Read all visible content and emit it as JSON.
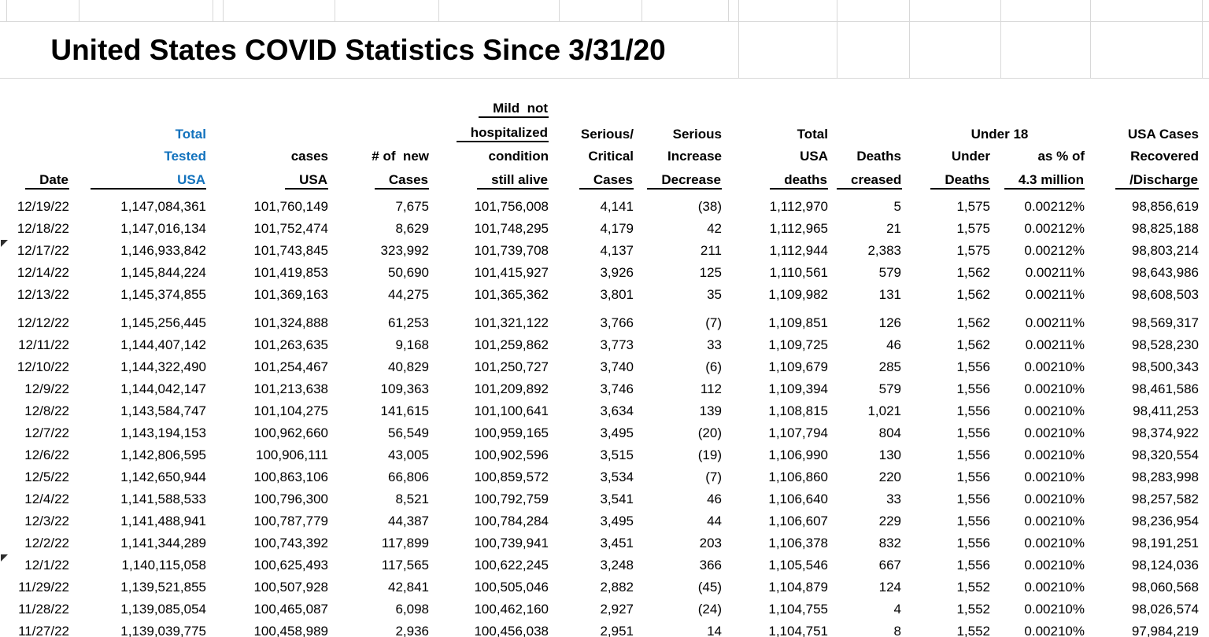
{
  "sheet_title": "United States COVID Statistics Since 3/31/20",
  "colors": {
    "header_accent_blue": "#1272bd",
    "gridline": "#d8d8d8",
    "text": "#000000"
  },
  "column_headers": {
    "date": "Date",
    "total_tested_usa": {
      "l1": "Total",
      "l2": "Tested",
      "l3": "USA"
    },
    "cases_usa": {
      "l1": "cases",
      "l2": "USA"
    },
    "new_cases": {
      "l1": "# of  new",
      "l2": "Cases"
    },
    "mild": {
      "l1": "Mild  not",
      "l2": "hospitalized",
      "l3": "condition",
      "l4": "still alive"
    },
    "serious_critical": {
      "l1": "Serious/",
      "l2": "Critical",
      "l3": "Cases"
    },
    "serious_change": {
      "l1": "Serious",
      "l2": "Increase",
      "l3": "Decrease"
    },
    "total_deaths": {
      "l1": "Total",
      "l2": "USA",
      "l3": "deaths"
    },
    "deaths_change": {
      "l1": "Deaths",
      "l2": "creased"
    },
    "under_18": {
      "group": "Under 18",
      "deaths_l1": "Under",
      "deaths_l2": "Deaths",
      "pct_l1": "as % of",
      "pct_l2": "4.3 million"
    },
    "recovered": {
      "l1": "USA Cases",
      "l2": "Recovered",
      "l3": "/Discharge"
    }
  },
  "rows": [
    {
      "date": "12/19/22",
      "tested": "1,147,084,361",
      "cases": "101,760,149",
      "new_cases": "7,675",
      "mild": "101,756,008",
      "serious": "4,141",
      "serious_change": "(38)",
      "deaths": "1,112,970",
      "deaths_change": "5",
      "under18_deaths": "1,575",
      "under18_pct": "0.00212%",
      "recovered": "98,856,619"
    },
    {
      "date": "12/18/22",
      "tested": "1,147,016,134",
      "cases": "101,752,474",
      "new_cases": "8,629",
      "mild": "101,748,295",
      "serious": "4,179",
      "serious_change": "42",
      "deaths": "1,112,965",
      "deaths_change": "21",
      "under18_deaths": "1,575",
      "under18_pct": "0.00212%",
      "recovered": "98,825,188"
    },
    {
      "date": "12/17/22",
      "tested": "1,146,933,842",
      "cases": "101,743,845",
      "new_cases": "323,992",
      "mild": "101,739,708",
      "serious": "4,137",
      "serious_change": "211",
      "deaths": "1,112,944",
      "deaths_change": "2,383",
      "under18_deaths": "1,575",
      "under18_pct": "0.00212%",
      "recovered": "98,803,214",
      "flagged": true
    },
    {
      "date": "12/14/22",
      "tested": "1,145,844,224",
      "cases": "101,419,853",
      "new_cases": "50,690",
      "mild": "101,415,927",
      "serious": "3,926",
      "serious_change": "125",
      "deaths": "1,110,561",
      "deaths_change": "579",
      "under18_deaths": "1,562",
      "under18_pct": "0.00211%",
      "recovered": "98,643,986"
    },
    {
      "date": "12/13/22",
      "tested": "1,145,374,855",
      "cases": "101,369,163",
      "new_cases": "44,275",
      "mild": "101,365,362",
      "serious": "3,801",
      "serious_change": "35",
      "deaths": "1,109,982",
      "deaths_change": "131",
      "under18_deaths": "1,562",
      "under18_pct": "0.00211%",
      "recovered": "98,608,503",
      "spacer_after": true
    },
    {
      "date": "12/12/22",
      "tested": "1,145,256,445",
      "cases": "101,324,888",
      "new_cases": "61,253",
      "mild": "101,321,122",
      "serious": "3,766",
      "serious_change": "(7)",
      "deaths": "1,109,851",
      "deaths_change": "126",
      "under18_deaths": "1,562",
      "under18_pct": "0.00211%",
      "recovered": "98,569,317"
    },
    {
      "date": "12/11/22",
      "tested": "1,144,407,142",
      "cases": "101,263,635",
      "new_cases": "9,168",
      "mild": "101,259,862",
      "serious": "3,773",
      "serious_change": "33",
      "deaths": "1,109,725",
      "deaths_change": "46",
      "under18_deaths": "1,562",
      "under18_pct": "0.00211%",
      "recovered": "98,528,230"
    },
    {
      "date": "12/10/22",
      "tested": "1,144,322,490",
      "cases": "101,254,467",
      "new_cases": "40,829",
      "mild": "101,250,727",
      "serious": "3,740",
      "serious_change": "(6)",
      "deaths": "1,109,679",
      "deaths_change": "285",
      "under18_deaths": "1,556",
      "under18_pct": "0.00210%",
      "recovered": "98,500,343"
    },
    {
      "date": "12/9/22",
      "tested": "1,144,042,147",
      "cases": "101,213,638",
      "new_cases": "109,363",
      "mild": "101,209,892",
      "serious": "3,746",
      "serious_change": "112",
      "deaths": "1,109,394",
      "deaths_change": "579",
      "under18_deaths": "1,556",
      "under18_pct": "0.00210%",
      "recovered": "98,461,586"
    },
    {
      "date": "12/8/22",
      "tested": "1,143,584,747",
      "cases": "101,104,275",
      "new_cases": "141,615",
      "mild": "101,100,641",
      "serious": "3,634",
      "serious_change": "139",
      "deaths": "1,108,815",
      "deaths_change": "1,021",
      "under18_deaths": "1,556",
      "under18_pct": "0.00210%",
      "recovered": "98,411,253"
    },
    {
      "date": "12/7/22",
      "tested": "1,143,194,153",
      "cases": "100,962,660",
      "new_cases": "56,549",
      "mild": "100,959,165",
      "serious": "3,495",
      "serious_change": "(20)",
      "deaths": "1,107,794",
      "deaths_change": "804",
      "under18_deaths": "1,556",
      "under18_pct": "0.00210%",
      "recovered": "98,374,922"
    },
    {
      "date": "12/6/22",
      "tested": "1,142,806,595",
      "cases": "100,906,111",
      "new_cases": "43,005",
      "mild": "100,902,596",
      "serious": "3,515",
      "serious_change": "(19)",
      "deaths": "1,106,990",
      "deaths_change": "130",
      "under18_deaths": "1,556",
      "under18_pct": "0.00210%",
      "recovered": "98,320,554"
    },
    {
      "date": "12/5/22",
      "tested": "1,142,650,944",
      "cases": "100,863,106",
      "new_cases": "66,806",
      "mild": "100,859,572",
      "serious": "3,534",
      "serious_change": "(7)",
      "deaths": "1,106,860",
      "deaths_change": "220",
      "under18_deaths": "1,556",
      "under18_pct": "0.00210%",
      "recovered": "98,283,998"
    },
    {
      "date": "12/4/22",
      "tested": "1,141,588,533",
      "cases": "100,796,300",
      "new_cases": "8,521",
      "mild": "100,792,759",
      "serious": "3,541",
      "serious_change": "46",
      "deaths": "1,106,640",
      "deaths_change": "33",
      "under18_deaths": "1,556",
      "under18_pct": "0.00210%",
      "recovered": "98,257,582"
    },
    {
      "date": "12/3/22",
      "tested": "1,141,488,941",
      "cases": "100,787,779",
      "new_cases": "44,387",
      "mild": "100,784,284",
      "serious": "3,495",
      "serious_change": "44",
      "deaths": "1,106,607",
      "deaths_change": "229",
      "under18_deaths": "1,556",
      "under18_pct": "0.00210%",
      "recovered": "98,236,954"
    },
    {
      "date": "12/2/22",
      "tested": "1,141,344,289",
      "cases": "100,743,392",
      "new_cases": "117,899",
      "mild": "100,739,941",
      "serious": "3,451",
      "serious_change": "203",
      "deaths": "1,106,378",
      "deaths_change": "832",
      "under18_deaths": "1,556",
      "under18_pct": "0.00210%",
      "recovered": "98,191,251"
    },
    {
      "date": "12/1/22",
      "tested": "1,140,115,058",
      "cases": "100,625,493",
      "new_cases": "117,565",
      "mild": "100,622,245",
      "serious": "3,248",
      "serious_change": "366",
      "deaths": "1,105,546",
      "deaths_change": "667",
      "under18_deaths": "1,556",
      "under18_pct": "0.00210%",
      "recovered": "98,124,036",
      "flagged": true
    },
    {
      "date": "11/29/22",
      "tested": "1,139,521,855",
      "cases": "100,507,928",
      "new_cases": "42,841",
      "mild": "100,505,046",
      "serious": "2,882",
      "serious_change": "(45)",
      "deaths": "1,104,879",
      "deaths_change": "124",
      "under18_deaths": "1,552",
      "under18_pct": "0.00210%",
      "recovered": "98,060,568"
    },
    {
      "date": "11/28/22",
      "tested": "1,139,085,054",
      "cases": "100,465,087",
      "new_cases": "6,098",
      "mild": "100,462,160",
      "serious": "2,927",
      "serious_change": "(24)",
      "deaths": "1,104,755",
      "deaths_change": "4",
      "under18_deaths": "1,552",
      "under18_pct": "0.00210%",
      "recovered": "98,026,574"
    },
    {
      "date": "11/27/22",
      "tested": "1,139,039,775",
      "cases": "100,458,989",
      "new_cases": "2,936",
      "mild": "100,456,038",
      "serious": "2,951",
      "serious_change": "14",
      "deaths": "1,104,751",
      "deaths_change": "8",
      "under18_deaths": "1,552",
      "under18_pct": "0.00210%",
      "recovered": "97,984,219"
    }
  ]
}
